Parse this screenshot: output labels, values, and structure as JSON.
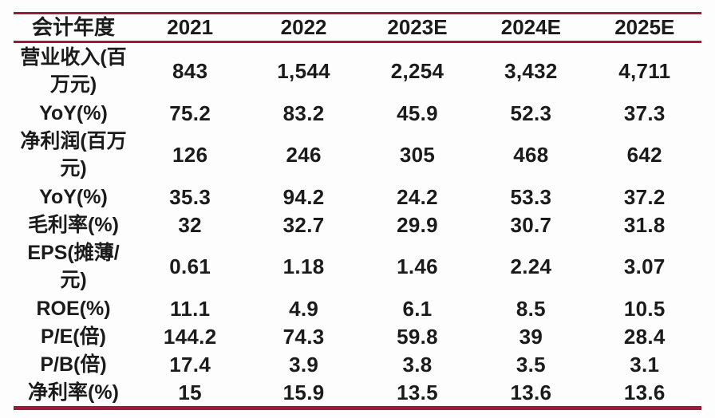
{
  "colors": {
    "accent": "#9C1B3C",
    "text": "#1B1B1B",
    "background": "#FDFDFD"
  },
  "chart_data": {
    "type": "table",
    "title": "",
    "columns": [
      "会计年度",
      "2021",
      "2022",
      "2023E",
      "2024E",
      "2025E"
    ],
    "rows": [
      {
        "label": "营业收入(百\n万元)",
        "values": [
          "843",
          "1,544",
          "2,254",
          "3,432",
          "4,711"
        ]
      },
      {
        "label": "YoY(%)",
        "values": [
          "75.2",
          "83.2",
          "45.9",
          "52.3",
          "37.3"
        ]
      },
      {
        "label": "净利润(百万\n元)",
        "values": [
          "126",
          "246",
          "305",
          "468",
          "642"
        ]
      },
      {
        "label": "YoY(%)",
        "values": [
          "35.3",
          "94.2",
          "24.2",
          "53.3",
          "37.2"
        ]
      },
      {
        "label": "毛利率(%)",
        "values": [
          "32",
          "32.7",
          "29.9",
          "30.7",
          "31.8"
        ]
      },
      {
        "label": "EPS(摊薄/\n元)",
        "values": [
          "0.61",
          "1.18",
          "1.46",
          "2.24",
          "3.07"
        ]
      },
      {
        "label": "ROE(%)",
        "values": [
          "11.1",
          "4.9",
          "6.1",
          "8.5",
          "10.5"
        ]
      },
      {
        "label": "P/E(倍)",
        "values": [
          "144.2",
          "74.3",
          "59.8",
          "39",
          "28.4"
        ]
      },
      {
        "label": "P/B(倍)",
        "values": [
          "17.4",
          "3.9",
          "3.8",
          "3.5",
          "3.1"
        ]
      },
      {
        "label": "净利率(%)",
        "values": [
          "15",
          "15.9",
          "13.5",
          "13.6",
          "13.6"
        ]
      }
    ],
    "layout": {
      "grid": "horizontal-rules-only",
      "rule_positions": [
        "above-header",
        "below-header",
        "below-last-row"
      ],
      "value_alignment": "center"
    }
  }
}
